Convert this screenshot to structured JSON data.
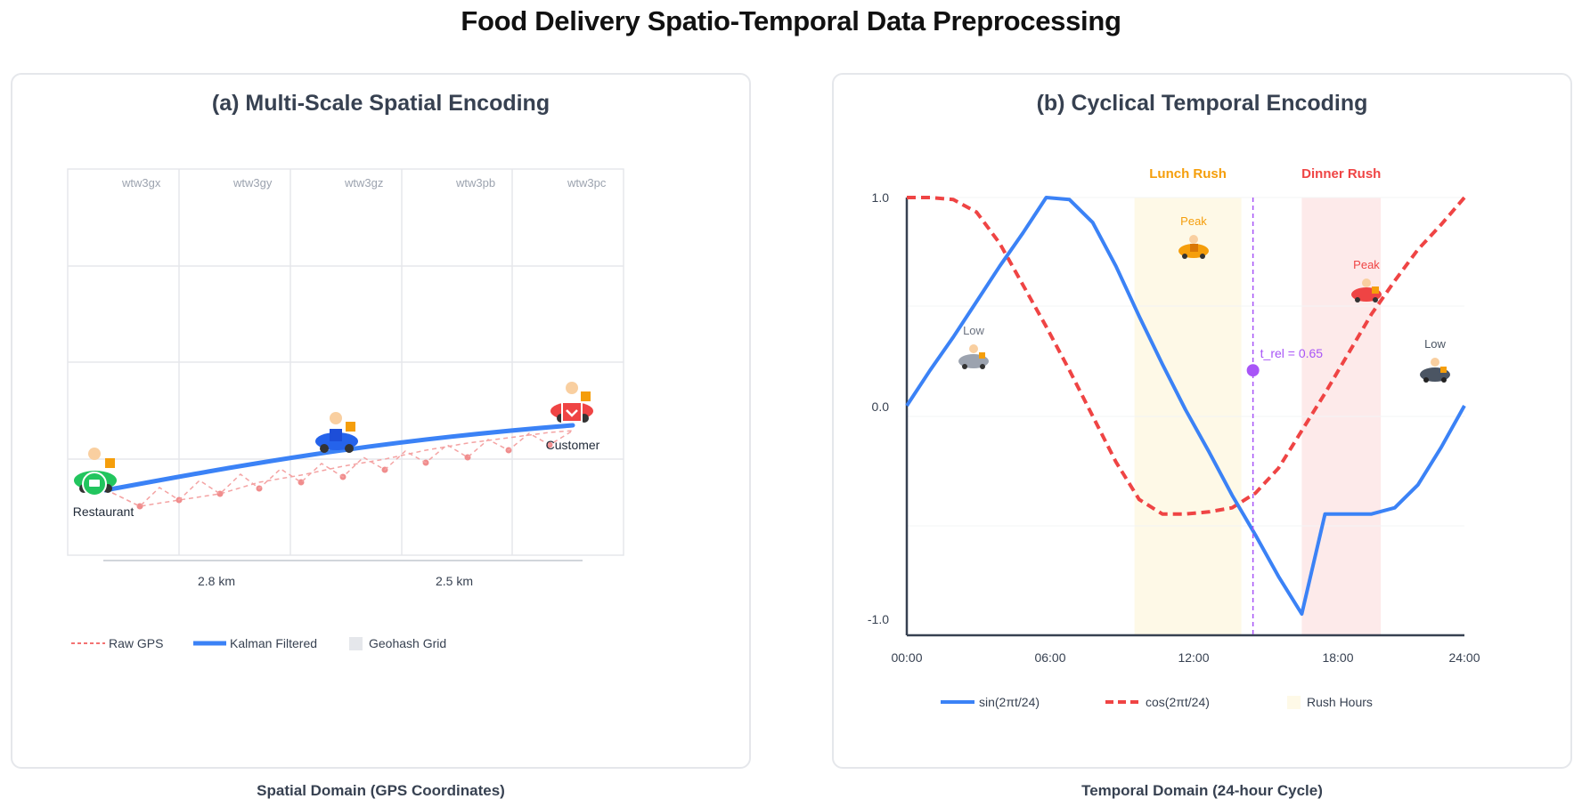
{
  "title": "Food Delivery Spatio-Temporal Data Preprocessing",
  "panel_a": {
    "title": "(a) Multi-Scale Spatial Encoding",
    "geohash_cells": [
      "wtw3gx",
      "wtw3gy",
      "wtw3gz",
      "wtw3pb",
      "wtw3pc"
    ],
    "restaurant_label": "Restaurant",
    "customer_label": "Customer",
    "distances": [
      "2.8 km",
      "2.5 km"
    ],
    "legend": {
      "raw_gps": "Raw GPS",
      "kalman": "Kalman Filtered",
      "geohash": "Geohash Grid"
    },
    "caption": "Spatial Domain (GPS Coordinates)"
  },
  "panel_b": {
    "title": "(b) Cyclical Temporal Encoding",
    "lunch_label": "Lunch Rush",
    "dinner_label": "Dinner Rush",
    "peak_label": "Peak",
    "low_label": "Low",
    "t_rel_label": "t_rel = 0.65",
    "caption": "Temporal Domain (24-hour Cycle)"
  },
  "colors": {
    "blue": "#3b82f6",
    "red": "#ef4444",
    "green": "#22c55e",
    "orange": "#f59e0b",
    "purple": "#a855f7",
    "lunch_band": "#fef9e7",
    "dinner_band": "#fdeaea"
  },
  "chart_data": {
    "type": "line",
    "title": "(b) Cyclical Temporal Encoding",
    "xlabel": "",
    "ylabel": "",
    "x_ticks": [
      "00:00",
      "06:00",
      "12:00",
      "18:00",
      "24:00"
    ],
    "y_ticks": [
      "1.0",
      "0.0",
      "-1.0"
    ],
    "xlim": [
      0,
      24
    ],
    "ylim": [
      -1,
      1
    ],
    "x": [
      0,
      1,
      2,
      3,
      4,
      5,
      6,
      7,
      8,
      9,
      10,
      11,
      12,
      13,
      14,
      15,
      16,
      17,
      18,
      19,
      20,
      21,
      22,
      23,
      24
    ],
    "series": [
      {
        "name": "sin(2πt/24)",
        "values": [
          0.0,
          0.17,
          0.33,
          0.5,
          0.67,
          0.83,
          1.0,
          0.99,
          0.88,
          0.67,
          0.43,
          0.2,
          -0.02,
          -0.22,
          -0.43,
          -0.62,
          -0.82,
          -1.0,
          -0.52,
          -0.52,
          -0.52,
          -0.49,
          -0.38,
          -0.2,
          0.0
        ]
      },
      {
        "name": "cos(2πt/24)",
        "values": [
          1.0,
          1.0,
          0.99,
          0.93,
          0.78,
          0.58,
          0.38,
          0.17,
          -0.05,
          -0.27,
          -0.45,
          -0.52,
          -0.52,
          -0.51,
          -0.49,
          -0.42,
          -0.3,
          -0.12,
          0.06,
          0.25,
          0.44,
          0.6,
          0.75,
          0.87,
          1.0
        ]
      }
    ],
    "bands": [
      {
        "name": "Lunch Rush",
        "start": 9.8,
        "end": 14.4
      },
      {
        "name": "Dinner Rush",
        "start": 17.0,
        "end": 20.4
      }
    ],
    "marker": {
      "label": "t_rel = 0.65",
      "x": 14.9,
      "y": 0.17
    },
    "legend": [
      "sin(2πt/24)",
      "cos(2πt/24)",
      "Rush Hours"
    ]
  }
}
